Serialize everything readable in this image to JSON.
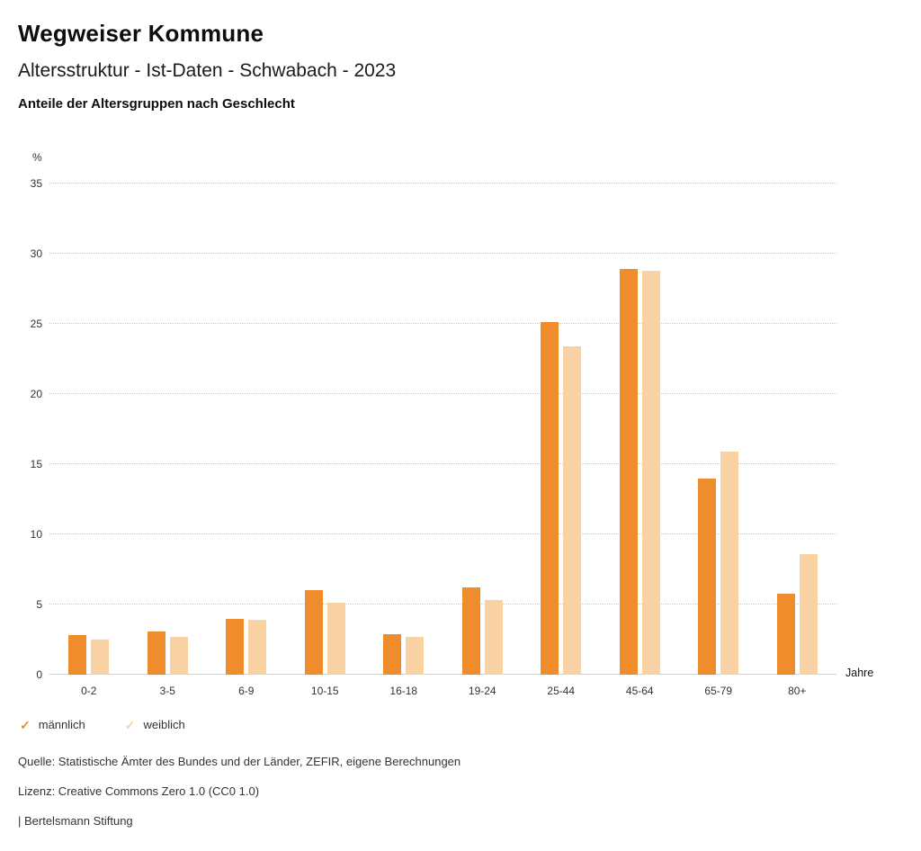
{
  "header": {
    "title": "Wegweiser Kommune",
    "subtitle": "Altersstruktur - Ist-Daten - Schwabach - 2023",
    "description": "Anteile der Altersgruppen nach Geschlecht"
  },
  "chart_data": {
    "type": "bar",
    "title": "Anteile der Altersgruppen nach Geschlecht",
    "categories": [
      "0-2",
      "3-5",
      "6-9",
      "10-15",
      "16-18",
      "19-24",
      "25-44",
      "45-64",
      "65-79",
      "80+"
    ],
    "series": [
      {
        "name": "männlich",
        "color": "#ef8c2b",
        "values": [
          2.8,
          3.1,
          4.0,
          6.0,
          2.9,
          6.2,
          25.1,
          28.9,
          14.0,
          5.8
        ]
      },
      {
        "name": "weiblich",
        "color": "#f8d2a2",
        "values": [
          2.5,
          2.7,
          3.9,
          5.1,
          2.7,
          5.3,
          23.4,
          28.8,
          15.9,
          8.6
        ]
      }
    ],
    "ylabel": "%",
    "xlabel": "Jahre",
    "ylim": [
      0,
      35
    ],
    "yticks": [
      0,
      5,
      10,
      15,
      20,
      25,
      30,
      35
    ],
    "grid": true,
    "legend_position": "bottom",
    "legend_icon": "check-icon"
  },
  "footer": {
    "source": "Quelle: Statistische Ämter des Bundes und der Länder, ZEFIR, eigene Berechnungen",
    "license": "Lizenz: Creative Commons Zero 1.0 (CC0 1.0)",
    "attribution": "| Bertelsmann Stiftung"
  }
}
